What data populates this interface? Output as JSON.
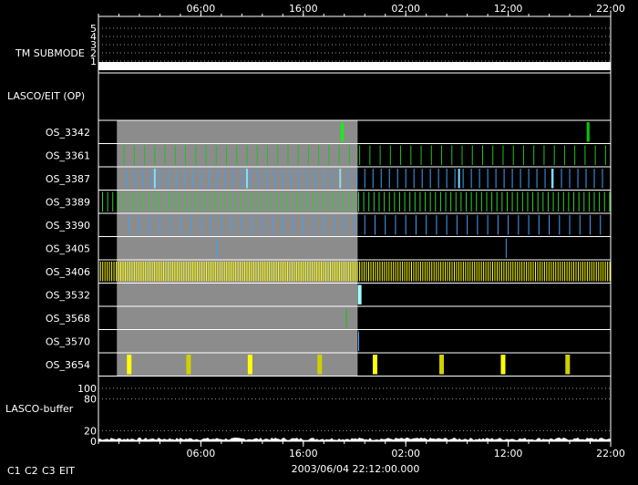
{
  "chart_data": {
    "type": "timeline",
    "x_tick_labels": [
      "06:00",
      "16:00",
      "02:00",
      "12:00",
      "22:00"
    ],
    "x_tick_hours": [
      6,
      16,
      26,
      36,
      46
    ],
    "x_range_hours": [
      -4,
      46
    ],
    "timestamp": "2003/06/04 22:12:00.000",
    "tm_submode": {
      "label": "TM SUBMODE",
      "levels": [
        "1",
        "2",
        "3",
        "4",
        "5"
      ],
      "value": 1
    },
    "lasco_eit_label": "LASCO/EIT (OP)",
    "shaded_interval_hours": [
      -2.2,
      21.3
    ],
    "rows": [
      {
        "label": "OS_3342",
        "events": [
          {
            "t": 19.8,
            "color": "#00ff00",
            "w": 3
          },
          {
            "t": 43.8,
            "color": "#00cc00",
            "w": 3
          }
        ]
      },
      {
        "label": "OS_3361",
        "pattern": {
          "start": -1.5,
          "end": 45.8,
          "step": 1.0,
          "color": "#20c020",
          "w": 1
        }
      },
      {
        "label": "OS_3387",
        "pattern": {
          "start": -1.2,
          "end": 45.8,
          "step": 0.8,
          "color": "#40a0ff",
          "w": 1
        },
        "events": [
          {
            "t": 1.5,
            "color": "#80e0ff",
            "w": 2
          },
          {
            "t": 10.5,
            "color": "#80e0ff",
            "w": 2
          },
          {
            "t": 19.6,
            "color": "#80e0ff",
            "w": 2
          },
          {
            "t": 31.2,
            "color": "#80e0ff",
            "w": 2
          },
          {
            "t": 40.3,
            "color": "#80e0ff",
            "w": 2
          }
        ]
      },
      {
        "label": "OS_3389",
        "pattern": {
          "start": -3.6,
          "end": 46,
          "step": 0.5,
          "color": "#30d030",
          "w": 1
        }
      },
      {
        "label": "OS_3390",
        "pattern": {
          "start": -1.0,
          "end": 45.8,
          "step": 1.0,
          "color": "#40a0ff",
          "w": 1
        }
      },
      {
        "label": "OS_3405",
        "events": [
          {
            "t": 7.6,
            "color": "#40a0ff",
            "w": 1
          },
          {
            "t": 35.8,
            "color": "#40a0ff",
            "w": 1
          }
        ]
      },
      {
        "label": "OS_3406",
        "pattern": {
          "start": -3.8,
          "end": 46,
          "step": 0.22,
          "color": "#ffff00",
          "w": 1
        }
      },
      {
        "label": "OS_3532",
        "events": [
          {
            "t": 21.5,
            "color": "#a0ffff",
            "w": 4
          }
        ]
      },
      {
        "label": "OS_3568",
        "events": [
          {
            "t": 20.2,
            "color": "#00cc00",
            "w": 1
          }
        ]
      },
      {
        "label": "OS_3570",
        "events": [
          {
            "t": 21.4,
            "color": "#40a0ff",
            "w": 1
          }
        ]
      },
      {
        "label": "OS_3654",
        "events": [
          {
            "t": -1.0,
            "color": "#ffff00",
            "w": 5
          },
          {
            "t": 4.8,
            "color": "#d0d000",
            "w": 5
          },
          {
            "t": 10.8,
            "color": "#ffff00",
            "w": 5
          },
          {
            "t": 17.6,
            "color": "#d0d000",
            "w": 5
          },
          {
            "t": 23.0,
            "color": "#ffff00",
            "w": 5
          },
          {
            "t": 29.5,
            "color": "#d0d000",
            "w": 5
          },
          {
            "t": 35.5,
            "color": "#ffff00",
            "w": 5
          },
          {
            "t": 41.8,
            "color": "#d0d000",
            "w": 5
          }
        ]
      }
    ],
    "buffer": {
      "label": "LASCO-buffer",
      "ticks": [
        "100",
        "80",
        "20",
        "0"
      ],
      "tick_values": [
        100,
        80,
        20,
        0
      ],
      "range": [
        0,
        100
      ]
    },
    "legend": [
      {
        "label": "C1",
        "color": "#ff2020"
      },
      {
        "label": "C2",
        "color": "#20ff20"
      },
      {
        "label": "C3",
        "color": "#ffffff"
      },
      {
        "label": "EIT",
        "color": "#ffffff"
      }
    ]
  }
}
